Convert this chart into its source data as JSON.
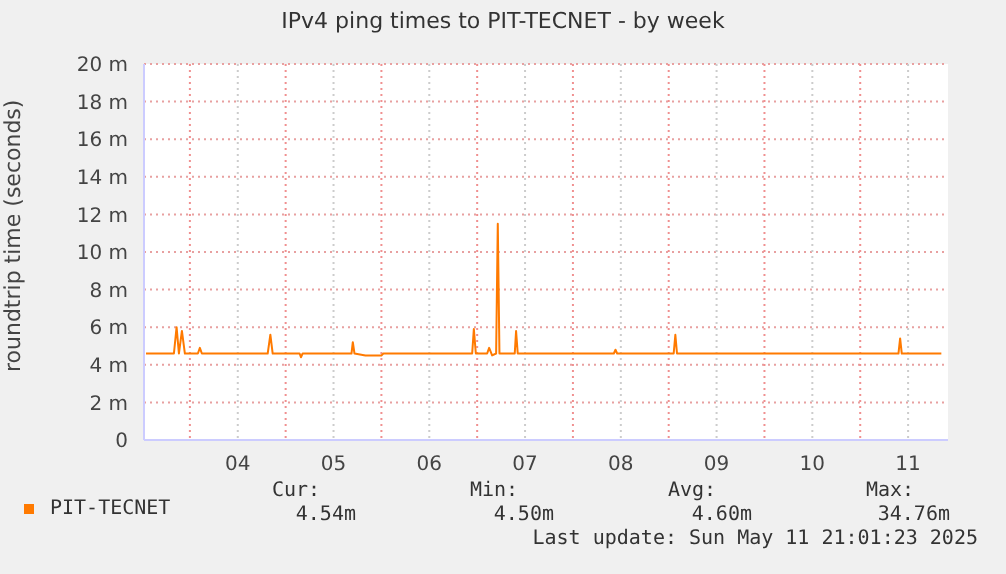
{
  "chart_data": {
    "type": "line",
    "title": "IPv4 ping times to PIT-TECNET - by week",
    "ylabel": "roundtrip time (seconds)",
    "x": [
      "2025-05-03T13:00",
      "2025-05-03T20:00",
      "2025-05-03T20:40",
      "2025-05-03T21:15",
      "2025-05-03T22:00",
      "2025-05-03T22:45",
      "2025-05-04T02:00",
      "2025-05-04T02:30",
      "2025-05-04T03:00",
      "2025-05-04T19:30",
      "2025-05-04T20:10",
      "2025-05-04T20:45",
      "2025-05-05T03:30",
      "2025-05-05T03:50",
      "2025-05-05T04:15",
      "2025-05-05T16:30",
      "2025-05-05T16:50",
      "2025-05-05T17:15",
      "2025-05-05T20:00",
      "2025-05-06T00:00",
      "2025-05-06T00:30",
      "2025-05-06T22:45",
      "2025-05-06T23:10",
      "2025-05-06T23:40",
      "2025-05-07T02:30",
      "2025-05-07T03:00",
      "2025-05-07T03:45",
      "2025-05-07T04:45",
      "2025-05-07T05:10",
      "2025-05-07T05:35",
      "2025-05-07T09:25",
      "2025-05-07T09:45",
      "2025-05-07T10:10",
      "2025-05-08T10:15",
      "2025-05-08T10:40",
      "2025-05-08T11:05",
      "2025-05-09T01:15",
      "2025-05-09T01:40",
      "2025-05-09T02:05",
      "2025-05-11T09:35",
      "2025-05-11T10:00",
      "2025-05-11T10:25",
      "2025-05-11T20:20"
    ],
    "series": [
      {
        "name": "PIT-TECNET",
        "color": "#ff7a00",
        "values": [
          4.6,
          4.6,
          6,
          4.6,
          5.8,
          4.6,
          4.6,
          4.9,
          4.6,
          4.6,
          5.6,
          4.6,
          4.6,
          4.4,
          4.6,
          4.6,
          5.2,
          4.6,
          4.5,
          4.5,
          4.6,
          4.6,
          5.9,
          4.6,
          4.6,
          4.9,
          4.5,
          4.6,
          11.5,
          4.6,
          4.6,
          5.8,
          4.6,
          4.6,
          4.8,
          4.6,
          4.6,
          5.6,
          4.6,
          4.6,
          5.4,
          4.6,
          4.6
        ]
      }
    ],
    "xlim": [
      "2025-05-03T12:30",
      "2025-05-11T22:00"
    ],
    "xticks": [
      {
        "value": "2025-05-04T00:00",
        "label": null
      },
      {
        "value": "2025-05-04T12:00",
        "label": "04"
      },
      {
        "value": "2025-05-05T00:00",
        "label": null
      },
      {
        "value": "2025-05-05T12:00",
        "label": "05"
      },
      {
        "value": "2025-05-06T00:00",
        "label": null
      },
      {
        "value": "2025-05-06T12:00",
        "label": "06"
      },
      {
        "value": "2025-05-07T00:00",
        "label": null
      },
      {
        "value": "2025-05-07T12:00",
        "label": "07"
      },
      {
        "value": "2025-05-08T00:00",
        "label": null
      },
      {
        "value": "2025-05-08T12:00",
        "label": "08"
      },
      {
        "value": "2025-05-09T00:00",
        "label": null
      },
      {
        "value": "2025-05-09T12:00",
        "label": "09"
      },
      {
        "value": "2025-05-10T00:00",
        "label": null
      },
      {
        "value": "2025-05-10T12:00",
        "label": "10"
      },
      {
        "value": "2025-05-11T00:00",
        "label": null
      },
      {
        "value": "2025-05-11T12:00",
        "label": "11"
      }
    ],
    "ylim": [
      0,
      20
    ],
    "yticks": [
      0,
      {
        "value": 2,
        "label": "2 m"
      },
      {
        "value": 4,
        "label": "4 m"
      },
      {
        "value": 6,
        "label": "6 m"
      },
      {
        "value": 8,
        "label": "8 m"
      },
      {
        "value": 10,
        "label": "10 m"
      },
      {
        "value": 12,
        "label": "12 m"
      },
      {
        "value": 14,
        "label": "14 m"
      },
      {
        "value": 16,
        "label": "16 m"
      },
      {
        "value": 18,
        "label": "18 m"
      },
      {
        "value": 20,
        "label": "20 m"
      }
    ],
    "grid": true,
    "legend": "bottom",
    "marker": "none",
    "line_style": "solid",
    "annotations": [
      "Cur:",
      "Min:",
      "Avg:",
      "Max:",
      "4.54m",
      "4.50m",
      "4.60m",
      "34.76m",
      "Last update: Sun May 11 21:01:23 2025"
    ]
  }
}
